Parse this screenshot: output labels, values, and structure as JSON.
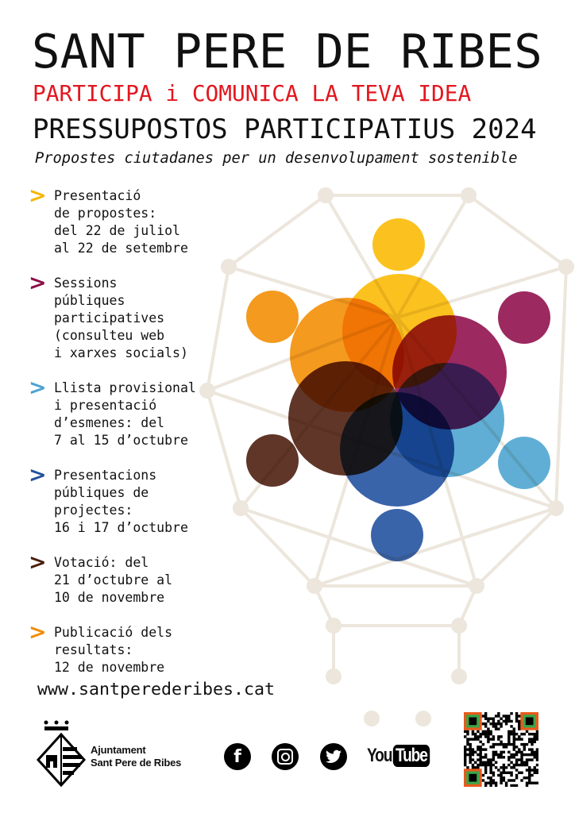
{
  "header": {
    "title": "SANT PERE DE RIBES",
    "slogan": "PARTICIPA i COMUNICA LA TEVA IDEA",
    "subtitle": "PRESSUPOSTOS PARTICIPATIUS 2024",
    "tagline": "Propostes ciutadanes per un desenvolupament sostenible"
  },
  "steps": [
    {
      "text": "Presentació\nde propostes:\ndel 22 de juliol\nal 22 de setembre",
      "color": "#f7b500"
    },
    {
      "text": "Sessions\npúbliques\nparticipatives\n(consulteu web\ni xarxes socials)",
      "color": "#8c0f47"
    },
    {
      "text": "Llista provisional\ni presentació\nd’esmenes: del\n7 al 15 d’octubre",
      "color": "#4ba3d1"
    },
    {
      "text": "Presentacions\npúbliques de\nprojectes:\n16 i 17 d’octubre",
      "color": "#24519c"
    },
    {
      "text": "Votació: del\n21 d’octubre al\n10 de novembre",
      "color": "#4a1e0c"
    },
    {
      "text": "Publicació dels\nresultats:\n12 de novembre",
      "color": "#f28c00"
    }
  ],
  "url": "www.santperederibes.cat",
  "footer": {
    "logo_line1": "Ajuntament",
    "logo_line2": "Sant Pere de Ribes",
    "social": [
      "facebook-icon",
      "instagram-icon",
      "twitter-icon",
      "youtube-icon"
    ],
    "youtube_you": "You",
    "youtube_tube": "Tube"
  },
  "colors": {
    "yellow": "#fbb900",
    "orange": "#f28c00",
    "magenta": "#8e0b4a",
    "brown": "#4a1a0a",
    "light_blue": "#4aa3d0",
    "dark_blue": "#1f4f9e",
    "red": "#e3171f",
    "network": "#ece6dc"
  }
}
